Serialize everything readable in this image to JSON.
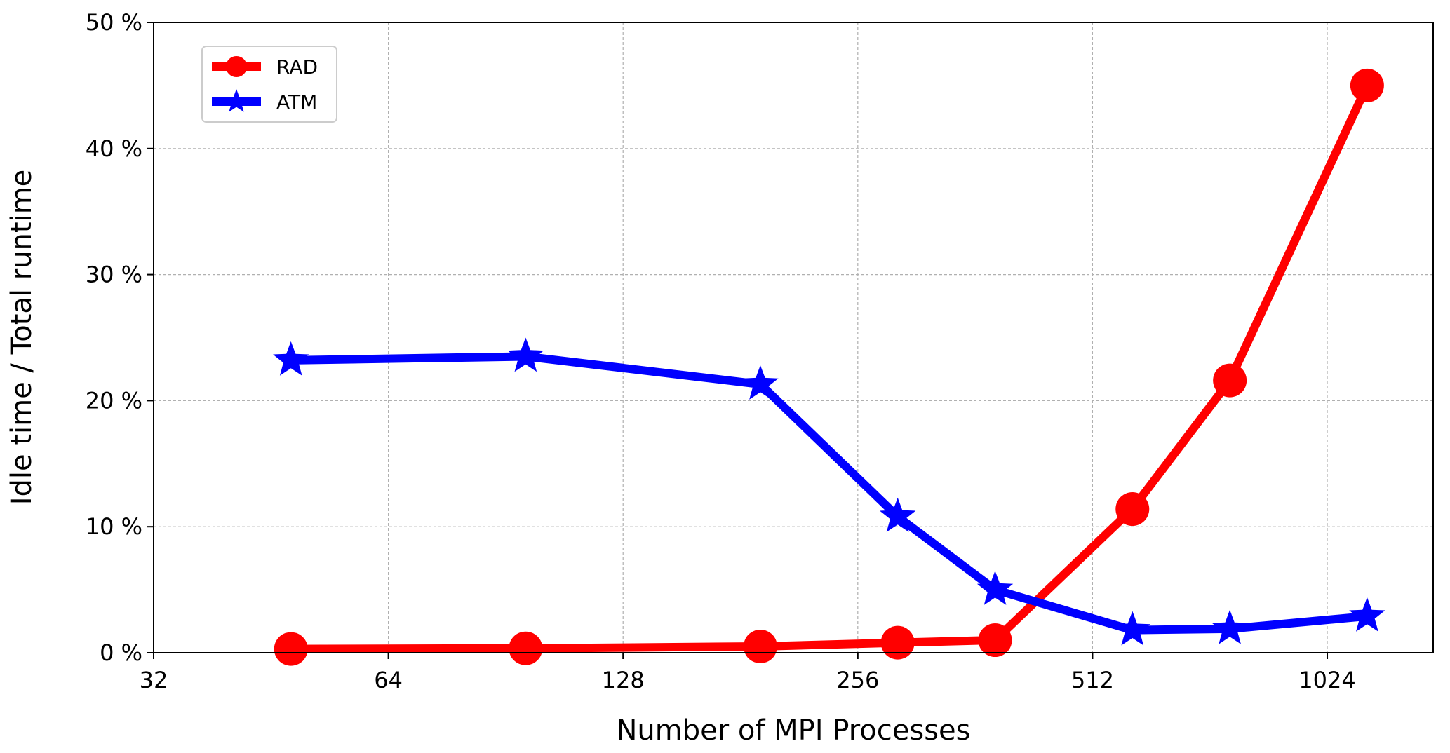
{
  "chart_data": {
    "type": "line",
    "title": "",
    "xlabel": "Number of MPI Processes",
    "ylabel": "Idle time / Total runtime",
    "xscale": "log2",
    "xlim": [
      32,
      1400
    ],
    "ylim": [
      0,
      50
    ],
    "grid": true,
    "legend_position": "top-left",
    "x_ticks": [
      32,
      64,
      128,
      256,
      512,
      1024
    ],
    "x_tick_labels": [
      "32",
      "64",
      "128",
      "256",
      "512",
      "1024"
    ],
    "y_ticks": [
      0,
      10,
      20,
      30,
      40,
      50
    ],
    "y_tick_labels": [
      "0 %",
      "10 %",
      "20 %",
      "30 %",
      "40 %",
      "50 %"
    ],
    "x": [
      48,
      96,
      192,
      288,
      384,
      576,
      768,
      1152
    ],
    "series": [
      {
        "name": "RAD",
        "color": "#ff0000",
        "marker": "circle",
        "values": [
          0.3,
          0.35,
          0.5,
          0.8,
          1.0,
          11.4,
          21.6,
          45.0
        ]
      },
      {
        "name": "ATM",
        "color": "#0000ff",
        "marker": "star",
        "values": [
          23.2,
          23.5,
          21.3,
          10.8,
          5.0,
          1.8,
          1.9,
          2.9
        ]
      }
    ]
  }
}
